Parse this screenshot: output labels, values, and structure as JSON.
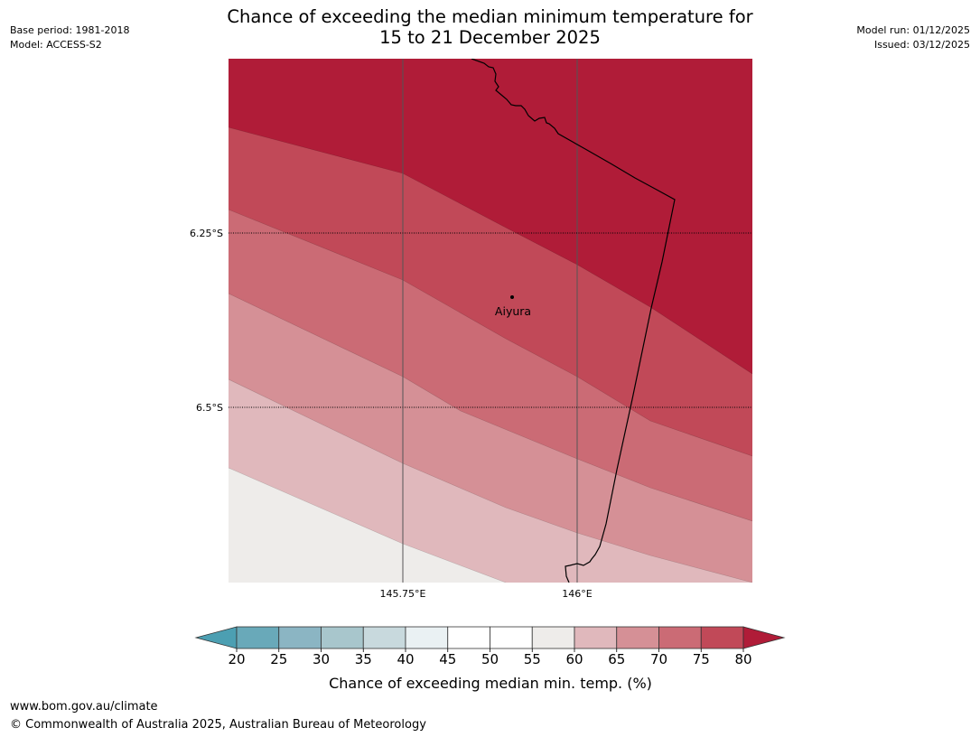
{
  "header": {
    "base_period": "Base period: 1981-2018",
    "model": "Model: ACCESS-S2",
    "model_run": "Model run: 01/12/2025",
    "issued": "Issued: 03/12/2025",
    "title_line1": "Chance of exceeding the median minimum temperature for",
    "title_line2": "15 to 21 December 2025"
  },
  "map": {
    "lat_labels": [
      "6.25°S",
      "6.5°S"
    ],
    "lon_labels": [
      "145.75°E",
      "146°E"
    ],
    "town": "Aiyura",
    "bands": [
      {
        "range": "80+",
        "color": "#b01c38"
      },
      {
        "range": "75-80",
        "color": "#c14958"
      },
      {
        "range": "70-75",
        "color": "#cb6b75"
      },
      {
        "range": "65-70",
        "color": "#d59096"
      },
      {
        "range": "60-65",
        "color": "#e0b8bc"
      },
      {
        "range": "55-60",
        "color": "#eeecea"
      }
    ]
  },
  "colorbar": {
    "ticks": [
      "20",
      "25",
      "30",
      "35",
      "40",
      "45",
      "50",
      "55",
      "60",
      "65",
      "70",
      "75",
      "80"
    ],
    "colors": [
      "#69a9b9",
      "#8bb5c3",
      "#a8c6cc",
      "#c8d9dd",
      "#eaf1f3",
      "#ffffff",
      "#ffffff",
      "#eeecea",
      "#e0b8bc",
      "#d59096",
      "#cb6b75",
      "#c14958"
    ],
    "low_color": "#4c9fb2",
    "high_color": "#b01c38",
    "label": "Chance of exceeding median min. temp. (%)"
  },
  "footer": {
    "url": "www.bom.gov.au/climate",
    "copyright": "© Commonwealth of Australia 2025, Australian Bureau of Meteorology"
  }
}
